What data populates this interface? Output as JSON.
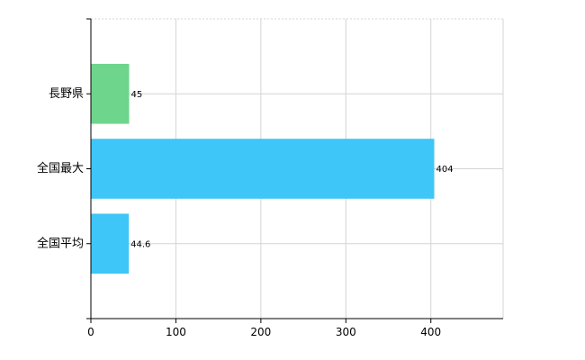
{
  "chart_data": {
    "type": "bar",
    "orientation": "horizontal",
    "categories": [
      "長野県",
      "全国最大",
      "全国平均"
    ],
    "values": [
      45,
      404,
      44.6
    ],
    "data_labels": [
      "45",
      "404",
      "44.6"
    ],
    "bar_colors": [
      "#6dd58c",
      "#3ec6f8",
      "#3ec6f8"
    ],
    "xlim": [
      0,
      485
    ],
    "x_ticks": [
      0,
      100,
      200,
      300,
      400
    ],
    "x_tick_labels": [
      "0",
      "100",
      "200",
      "300",
      "400"
    ],
    "grid": true,
    "legend": "none"
  }
}
